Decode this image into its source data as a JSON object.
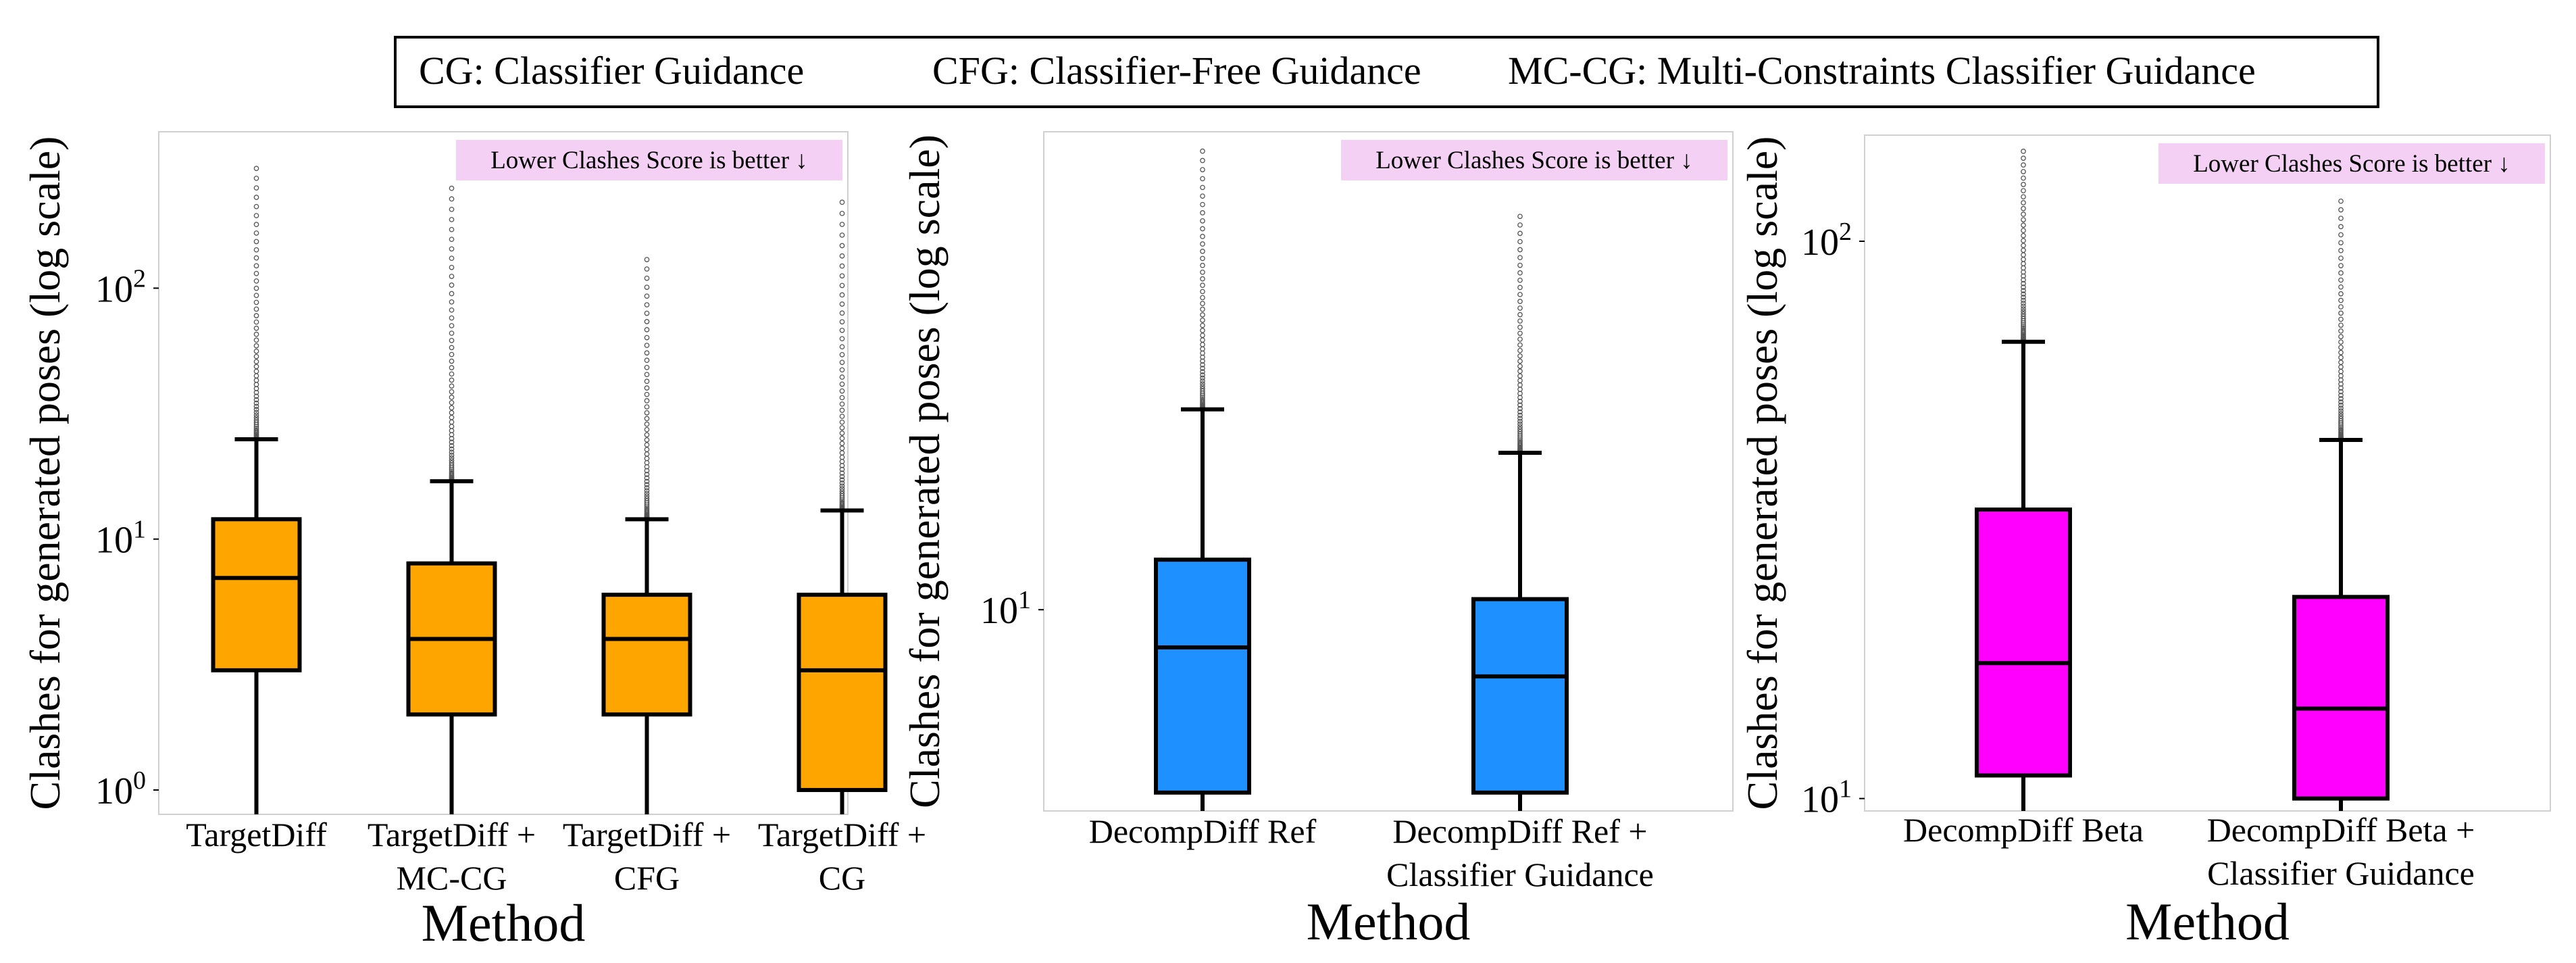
{
  "legend": {
    "items": [
      "CG: Classifier Guidance",
      "CFG: Classifier-Free Guidance",
      "MC-CG: Multi-Constraints Classifier Guidance"
    ]
  },
  "chart_data": [
    {
      "type": "box",
      "title": "",
      "note": "Lower Clashes Score is better ↓",
      "xlabel": "Method",
      "ylabel": "Clashes for generated poses (log scale)",
      "yscale": "log",
      "ylim": [
        0.8,
        420
      ],
      "yticks": [
        {
          "value": 1,
          "base": "10",
          "exp": "0"
        },
        {
          "value": 10,
          "base": "10",
          "exp": "1"
        },
        {
          "value": 100,
          "base": "10",
          "exp": "2"
        }
      ],
      "box_color": "#FFA500",
      "categories": [
        [
          "TargetDiff"
        ],
        [
          "TargetDiff +",
          "MC-CG"
        ],
        [
          "TargetDiff +",
          "CFG"
        ],
        [
          "TargetDiff +",
          "CG"
        ]
      ],
      "boxes": [
        {
          "whisker_low": 0.8,
          "q1": 3,
          "median": 7,
          "q3": 12,
          "whisker_high": 25,
          "outlier_max": 300
        },
        {
          "whisker_low": 0.8,
          "q1": 2,
          "median": 4,
          "q3": 8,
          "whisker_high": 17,
          "outlier_max": 250
        },
        {
          "whisker_low": 0.8,
          "q1": 2,
          "median": 4,
          "q3": 6,
          "whisker_high": 12,
          "outlier_max": 130
        },
        {
          "whisker_low": 0.8,
          "q1": 1,
          "median": 3,
          "q3": 6,
          "whisker_high": 13,
          "outlier_max": 220
        }
      ]
    },
    {
      "type": "box",
      "title": "",
      "note": "Lower Clashes Score is better ↓",
      "xlabel": "Method",
      "ylabel": "Clashes for generated poses (log scale)",
      "yscale": "log",
      "ylim": [
        5.7,
        38
      ],
      "yticks": [
        {
          "value": 10,
          "base": "10",
          "exp": "1"
        }
      ],
      "box_color": "#1E90FF",
      "categories": [
        [
          "DecompDiff Ref"
        ],
        [
          "DecompDiff Ref +",
          "Classifier Guidance"
        ]
      ],
      "boxes": [
        {
          "whisker_low": 5.7,
          "q1": 6,
          "median": 9,
          "q3": 11.5,
          "whisker_high": 17.5,
          "outlier_max": 36
        },
        {
          "whisker_low": 5.7,
          "q1": 6,
          "median": 8.3,
          "q3": 10.3,
          "whisker_high": 15.5,
          "outlier_max": 30
        }
      ]
    },
    {
      "type": "box",
      "title": "",
      "note": "Lower Clashes Score is better ↓",
      "xlabel": "Method",
      "ylabel": "Clashes for generated poses (log scale)",
      "yscale": "log",
      "ylim": [
        9.5,
        155
      ],
      "yticks": [
        {
          "value": 10,
          "base": "10",
          "exp": "1"
        },
        {
          "value": 100,
          "base": "10",
          "exp": "2"
        }
      ],
      "box_color": "#FF00FF",
      "categories": [
        [
          "DecompDiff Beta"
        ],
        [
          "DecompDiff Beta +",
          "Classifier Guidance"
        ]
      ],
      "boxes": [
        {
          "whisker_low": 9.5,
          "q1": 11,
          "median": 17.5,
          "q3": 33,
          "whisker_high": 66,
          "outlier_max": 145
        },
        {
          "whisker_low": 9.5,
          "q1": 10,
          "median": 14.5,
          "q3": 23,
          "whisker_high": 44,
          "outlier_max": 118
        }
      ]
    }
  ]
}
